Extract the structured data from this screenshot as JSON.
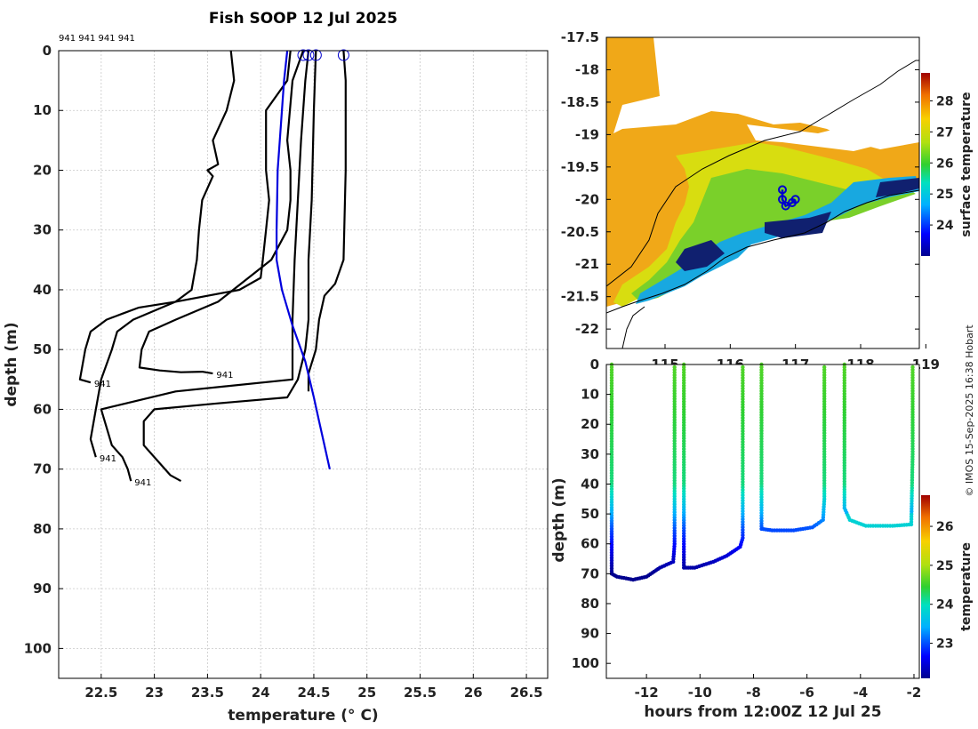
{
  "chart_data": [
    {
      "type": "line",
      "title": "Fish SOOP 12 Jul 2025",
      "xlabel": "temperature (° C)",
      "ylabel": "depth (m)",
      "xlim": [
        22.1,
        26.7
      ],
      "ylim": [
        0,
        105
      ],
      "y_reversed": true,
      "grid": true,
      "xticks": [
        "22.5",
        "23",
        "23.5",
        "24",
        "24.5",
        "25",
        "25.5",
        "26",
        "26.5"
      ],
      "yticks": [
        "0",
        "10",
        "20",
        "30",
        "40",
        "50",
        "60",
        "70",
        "80",
        "90",
        "100"
      ],
      "top_labels": "941 941 941 941",
      "series": [
        {
          "name": "profile 1",
          "color": "#000000",
          "points": [
            [
              23.72,
              0
            ],
            [
              23.75,
              5
            ],
            [
              23.68,
              10
            ],
            [
              23.55,
              15
            ],
            [
              23.6,
              19
            ],
            [
              23.5,
              20
            ],
            [
              23.55,
              21
            ],
            [
              23.45,
              25
            ],
            [
              23.42,
              30
            ],
            [
              23.4,
              35
            ],
            [
              23.35,
              40
            ],
            [
              23.2,
              42
            ],
            [
              22.85,
              43
            ],
            [
              22.7,
              44
            ],
            [
              22.55,
              45
            ],
            [
              22.4,
              47
            ],
            [
              22.35,
              50
            ],
            [
              22.32,
              53
            ],
            [
              22.3,
              55
            ],
            [
              22.4,
              55.5
            ]
          ],
          "end_label": "941",
          "end": [
            22.4,
            55.5
          ]
        },
        {
          "name": "profile 2",
          "color": "#000000",
          "points": [
            [
              24.28,
              0
            ],
            [
              24.25,
              5
            ],
            [
              24.05,
              10
            ],
            [
              24.05,
              20
            ],
            [
              24.08,
              25
            ],
            [
              24.05,
              30
            ],
            [
              24.02,
              35
            ],
            [
              24.0,
              38
            ],
            [
              23.8,
              40
            ],
            [
              23.2,
              42
            ],
            [
              22.8,
              45
            ],
            [
              22.65,
              47
            ],
            [
              22.6,
              50
            ],
            [
              22.5,
              55
            ],
            [
              22.45,
              60
            ],
            [
              22.4,
              65
            ],
            [
              22.45,
              68
            ]
          ],
          "end_label": "941",
          "end": [
            22.45,
            68
          ]
        },
        {
          "name": "profile 3",
          "color": "#000000",
          "points": [
            [
              24.4,
              0
            ],
            [
              24.3,
              5
            ],
            [
              24.25,
              15
            ],
            [
              24.28,
              20
            ],
            [
              24.28,
              25
            ],
            [
              24.25,
              30
            ],
            [
              24.1,
              35
            ],
            [
              23.6,
              42
            ],
            [
              23.2,
              45
            ],
            [
              22.95,
              47
            ],
            [
              22.88,
              50
            ],
            [
              22.86,
              53
            ],
            [
              23.05,
              53.5
            ],
            [
              23.25,
              53.8
            ],
            [
              23.45,
              53.7
            ],
            [
              23.55,
              54
            ]
          ],
          "end_label": "941",
          "end": [
            23.55,
            54
          ]
        },
        {
          "name": "profile 4",
          "color": "#000000",
          "points": [
            [
              24.45,
              0
            ],
            [
              24.42,
              5
            ],
            [
              24.38,
              15
            ],
            [
              24.35,
              25
            ],
            [
              24.32,
              35
            ],
            [
              24.3,
              45
            ],
            [
              24.3,
              55
            ],
            [
              23.2,
              57
            ],
            [
              22.5,
              60
            ],
            [
              22.6,
              66
            ],
            [
              22.7,
              68
            ],
            [
              22.75,
              70
            ],
            [
              22.78,
              72
            ]
          ],
          "end_label": "941",
          "end": [
            22.78,
            72
          ]
        },
        {
          "name": "profile 5",
          "color": "#000000",
          "points": [
            [
              24.52,
              0
            ],
            [
              24.5,
              10
            ],
            [
              24.48,
              25
            ],
            [
              24.45,
              35
            ],
            [
              24.45,
              45
            ],
            [
              24.42,
              50
            ],
            [
              24.35,
              55
            ],
            [
              24.25,
              58
            ],
            [
              23.6,
              59
            ],
            [
              23.0,
              60
            ],
            [
              22.9,
              62
            ],
            [
              22.9,
              66
            ],
            [
              23.15,
              71
            ],
            [
              23.25,
              72
            ]
          ]
        },
        {
          "name": "profile 6",
          "color": "#000000",
          "points": [
            [
              24.78,
              0
            ],
            [
              24.8,
              5
            ],
            [
              24.8,
              20
            ],
            [
              24.78,
              35
            ],
            [
              24.7,
              39
            ],
            [
              24.6,
              41
            ],
            [
              24.55,
              45
            ],
            [
              24.52,
              50
            ],
            [
              24.45,
              54
            ],
            [
              24.45,
              57
            ]
          ]
        },
        {
          "name": "reference",
          "color": "#0000dd",
          "points": [
            [
              24.25,
              0
            ],
            [
              24.22,
              5
            ],
            [
              24.2,
              10
            ],
            [
              24.18,
              15
            ],
            [
              24.16,
              20
            ],
            [
              24.15,
              30
            ],
            [
              24.15,
              35
            ],
            [
              24.2,
              40
            ],
            [
              24.3,
              46
            ],
            [
              24.42,
              52
            ],
            [
              24.5,
              58
            ],
            [
              24.55,
              62
            ],
            [
              24.6,
              66
            ],
            [
              24.65,
              70
            ]
          ]
        }
      ],
      "surface_markers": [
        24.4,
        24.45,
        24.52,
        24.78
      ]
    },
    {
      "type": "heatmap",
      "title": "",
      "ylim": [
        -22.3,
        -17.5
      ],
      "xlim": [
        114.1,
        118.9
      ],
      "yticks": [
        "-17.5",
        "-18",
        "-18.5",
        "-19",
        "-19.5",
        "-20",
        "-20.5",
        "-21",
        "-21.5",
        "-22"
      ],
      "xticks": [
        "115",
        "116",
        "117",
        "118",
        "119"
      ],
      "colorbar_label": "surface temperature",
      "colorbar_ticks": [
        "24",
        "25",
        "26",
        "27",
        "28"
      ],
      "colorbar_range": [
        23.0,
        28.9
      ],
      "track": [
        [
          116.8,
          -19.85
        ],
        [
          116.8,
          -20.0
        ],
        [
          116.85,
          -20.1
        ],
        [
          116.95,
          -20.05
        ],
        [
          117.0,
          -20.0
        ]
      ]
    },
    {
      "type": "scatter",
      "title": "",
      "xlabel": "hours from 12:00Z 12 Jul 25",
      "ylabel": "depth (m)",
      "xlim": [
        -13.5,
        -1.8
      ],
      "ylim": [
        0,
        105
      ],
      "y_reversed": true,
      "xticks": [
        "-12",
        "-10",
        "-8",
        "-6",
        "-4",
        "-2"
      ],
      "yticks": [
        "0",
        "10",
        "20",
        "30",
        "40",
        "50",
        "60",
        "70",
        "80",
        "90",
        "100"
      ],
      "colorbar_label": "temperature",
      "colorbar_ticks": [
        "23",
        "24",
        "25",
        "26"
      ],
      "colorbar_range": [
        22.1,
        26.8
      ]
    }
  ],
  "copyright": "© IMOS 15-Sep-2025 16:38 Hobart"
}
